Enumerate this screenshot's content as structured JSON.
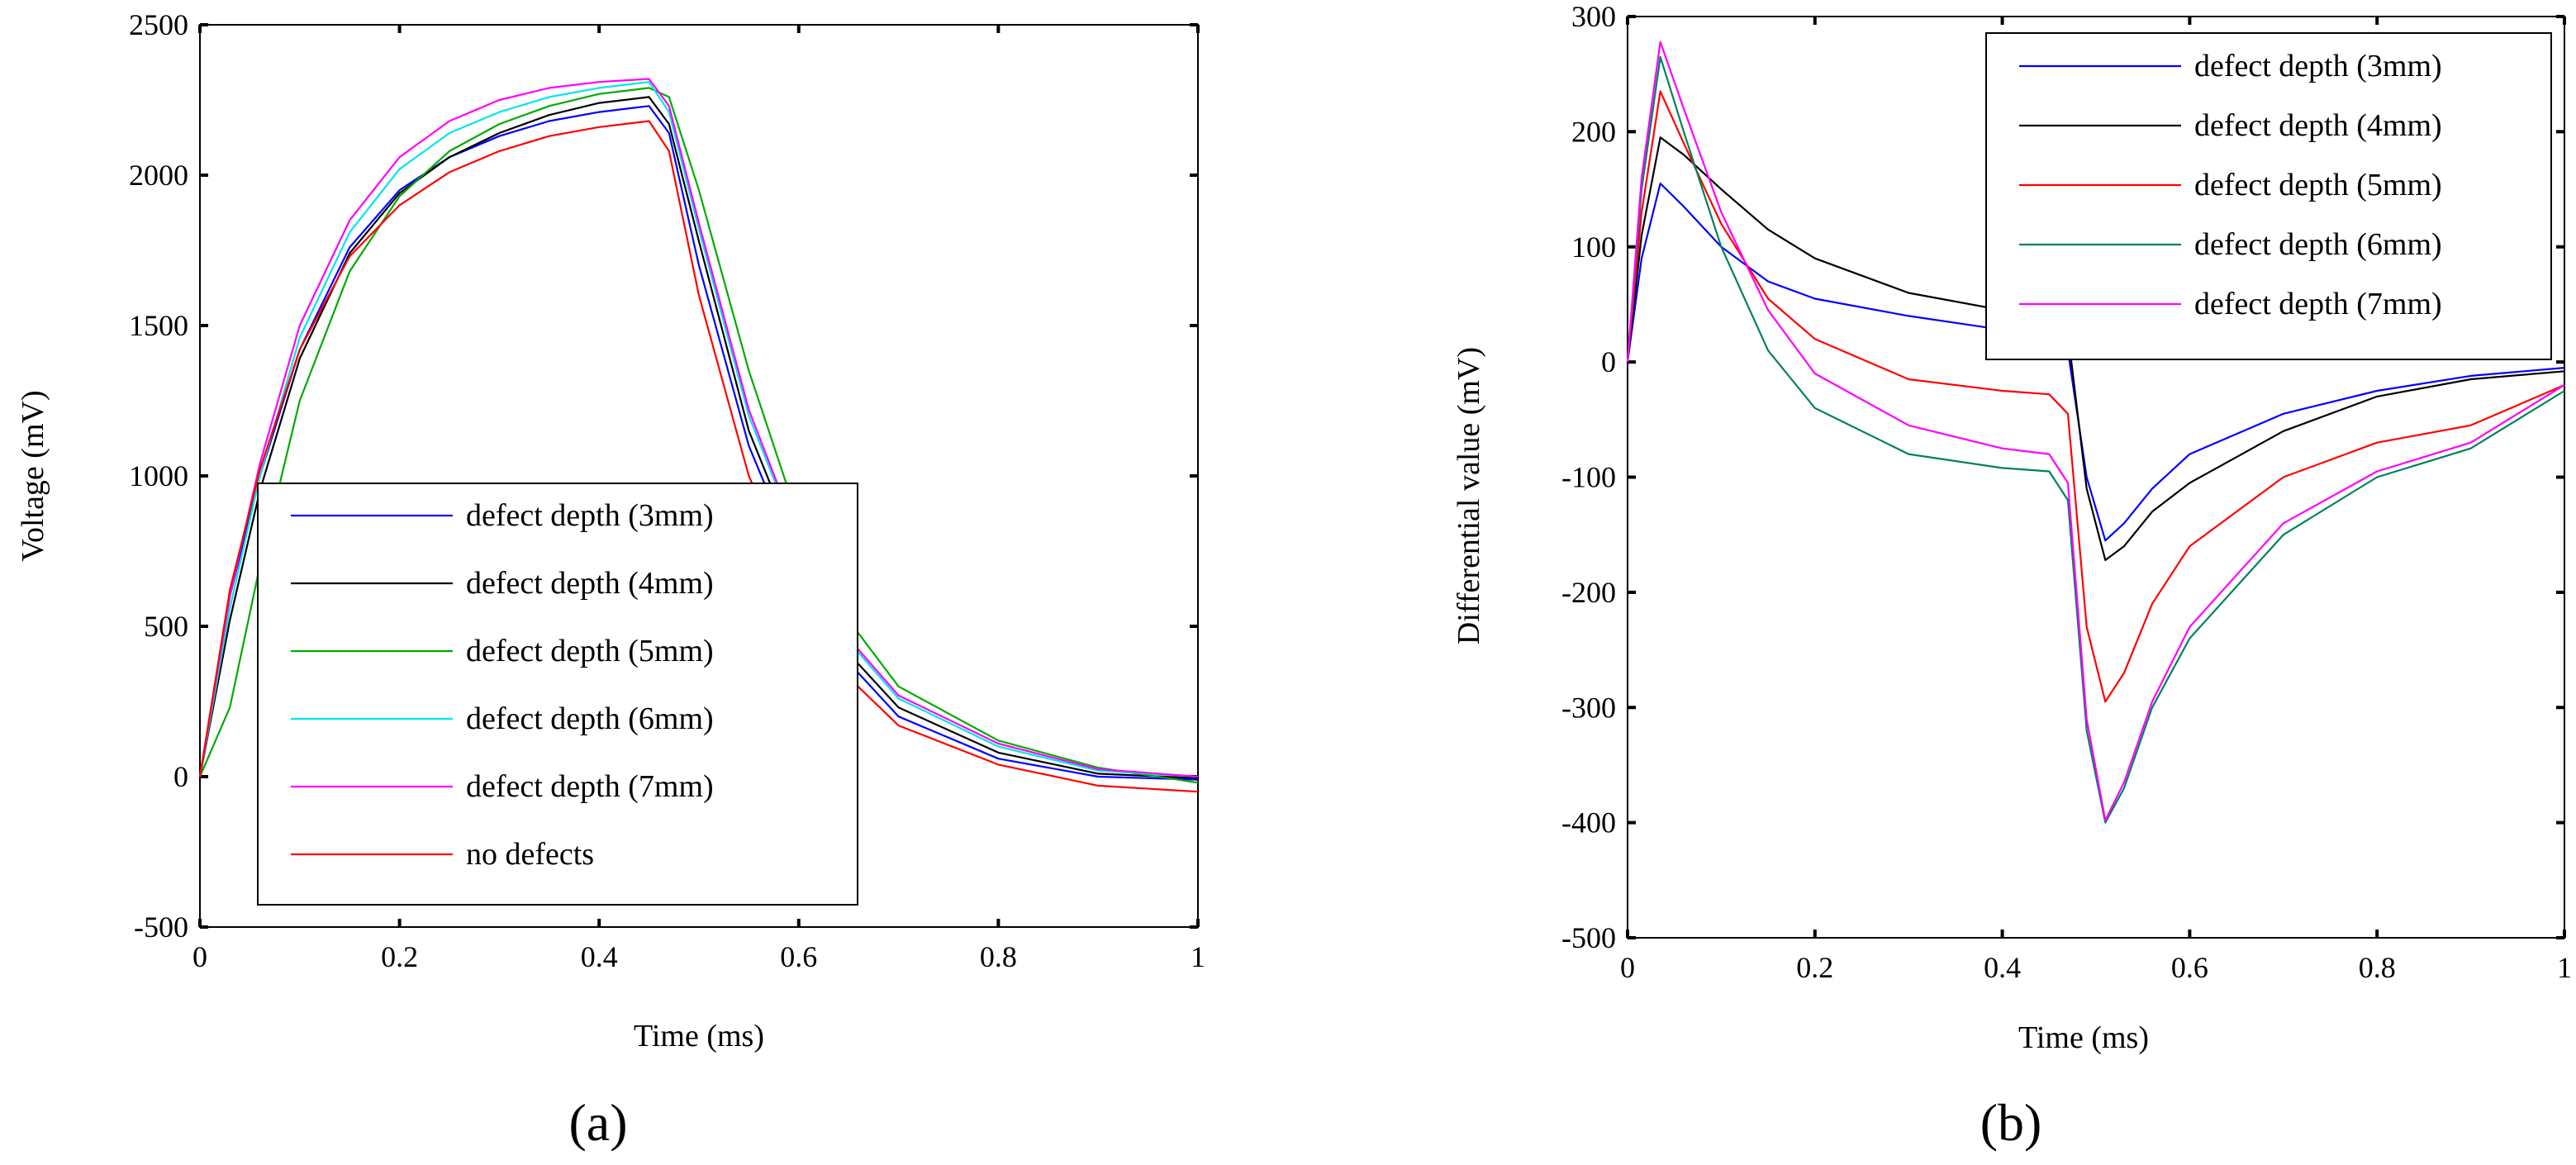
{
  "colors": {
    "3mm": "#0000ff",
    "4mm": "#000000",
    "5mm": "#00aa00",
    "6mm": "#00e6e6",
    "7mm": "#ff00ff",
    "none": "#ff0000",
    "b5mm": "#ff0000",
    "b6mm": "#008060"
  },
  "chart_data": [
    {
      "type": "line",
      "panel_label": "(a)",
      "title": "",
      "xlabel": "Time (ms)",
      "ylabel": "Voltage (mV)",
      "xlim": [
        0,
        1
      ],
      "ylim": [
        -500,
        2500
      ],
      "xticks": [
        "0",
        "0.2",
        "0.4",
        "0.6",
        "0.8",
        "1"
      ],
      "xtick_values": [
        0,
        0.2,
        0.4,
        0.6,
        0.8,
        1
      ],
      "yticks": [
        "-500",
        "0",
        "500",
        "1000",
        "1500",
        "2000",
        "2500"
      ],
      "ytick_values": [
        -500,
        0,
        500,
        1000,
        1500,
        2000,
        2500
      ],
      "legend_position": "bottom-center",
      "series": [
        {
          "name": "defect depth (3mm)",
          "color_key": "3mm",
          "x": [
            0,
            0.03,
            0.06,
            0.1,
            0.15,
            0.2,
            0.25,
            0.3,
            0.35,
            0.4,
            0.45,
            0.47,
            0.5,
            0.55,
            0.6,
            0.65,
            0.7,
            0.8,
            0.9,
            1
          ],
          "y": [
            0,
            600,
            1000,
            1420,
            1760,
            1950,
            2060,
            2130,
            2180,
            2210,
            2230,
            2140,
            1700,
            1100,
            700,
            380,
            200,
            60,
            0,
            -10
          ]
        },
        {
          "name": "defect depth (4mm)",
          "color_key": "4mm",
          "x": [
            0,
            0.03,
            0.06,
            0.1,
            0.15,
            0.2,
            0.25,
            0.3,
            0.35,
            0.4,
            0.45,
            0.47,
            0.5,
            0.55,
            0.6,
            0.65,
            0.7,
            0.8,
            0.9,
            1
          ],
          "y": [
            0,
            520,
            950,
            1390,
            1740,
            1940,
            2060,
            2140,
            2200,
            2240,
            2260,
            2170,
            1780,
            1150,
            740,
            410,
            230,
            80,
            10,
            -5
          ]
        },
        {
          "name": "defect depth (5mm)",
          "color_key": "5mm",
          "x": [
            0,
            0.03,
            0.06,
            0.1,
            0.15,
            0.2,
            0.25,
            0.3,
            0.35,
            0.4,
            0.45,
            0.47,
            0.5,
            0.55,
            0.6,
            0.65,
            0.7,
            0.8,
            0.9,
            1
          ],
          "y": [
            0,
            230,
            700,
            1250,
            1680,
            1930,
            2080,
            2170,
            2230,
            2270,
            2290,
            2260,
            1950,
            1350,
            850,
            520,
            300,
            120,
            30,
            -20
          ]
        },
        {
          "name": "defect depth (6mm)",
          "color_key": "6mm",
          "x": [
            0,
            0.03,
            0.06,
            0.1,
            0.15,
            0.2,
            0.25,
            0.3,
            0.35,
            0.4,
            0.45,
            0.47,
            0.5,
            0.55,
            0.6,
            0.65,
            0.7,
            0.8,
            0.9,
            1
          ],
          "y": [
            0,
            560,
            1000,
            1460,
            1810,
            2020,
            2140,
            2210,
            2260,
            2290,
            2310,
            2210,
            1820,
            1200,
            780,
            450,
            260,
            100,
            20,
            0
          ]
        },
        {
          "name": "defect depth (7mm)",
          "color_key": "7mm",
          "x": [
            0,
            0.03,
            0.06,
            0.1,
            0.15,
            0.2,
            0.25,
            0.3,
            0.35,
            0.4,
            0.45,
            0.47,
            0.5,
            0.55,
            0.6,
            0.65,
            0.7,
            0.8,
            0.9,
            1
          ],
          "y": [
            0,
            600,
            1040,
            1500,
            1850,
            2060,
            2180,
            2250,
            2290,
            2310,
            2320,
            2230,
            1840,
            1220,
            790,
            460,
            270,
            110,
            25,
            0
          ]
        },
        {
          "name": "no defects",
          "color_key": "none",
          "x": [
            0,
            0.03,
            0.06,
            0.1,
            0.15,
            0.2,
            0.25,
            0.3,
            0.35,
            0.4,
            0.45,
            0.47,
            0.5,
            0.55,
            0.6,
            0.65,
            0.7,
            0.8,
            0.9,
            1
          ],
          "y": [
            0,
            620,
            1020,
            1420,
            1730,
            1900,
            2010,
            2080,
            2130,
            2160,
            2180,
            2080,
            1600,
            1000,
            620,
            330,
            170,
            40,
            -30,
            -50
          ]
        }
      ]
    },
    {
      "type": "line",
      "panel_label": "(b)",
      "title": "",
      "xlabel": "Time (ms)",
      "ylabel": "Differential value (mV)",
      "xlim": [
        0,
        1
      ],
      "ylim": [
        -500,
        300
      ],
      "xticks": [
        "0",
        "0.2",
        "0.4",
        "0.6",
        "0.8",
        "1"
      ],
      "xtick_values": [
        0,
        0.2,
        0.4,
        0.6,
        0.8,
        1
      ],
      "yticks": [
        "-500",
        "-400",
        "-300",
        "-200",
        "-100",
        "0",
        "100",
        "200",
        "300"
      ],
      "ytick_values": [
        -500,
        -400,
        -300,
        -200,
        -100,
        0,
        100,
        200,
        300
      ],
      "legend_position": "top-right",
      "series": [
        {
          "name": "defect depth (3mm)",
          "color_key": "3mm",
          "x": [
            0,
            0.015,
            0.035,
            0.06,
            0.1,
            0.15,
            0.2,
            0.3,
            0.4,
            0.45,
            0.47,
            0.49,
            0.51,
            0.53,
            0.56,
            0.6,
            0.7,
            0.8,
            0.9,
            1
          ],
          "y": [
            0,
            90,
            155,
            135,
            100,
            70,
            55,
            40,
            28,
            25,
            10,
            -100,
            -155,
            -140,
            -110,
            -80,
            -45,
            -25,
            -12,
            -5
          ]
        },
        {
          "name": "defect depth (4mm)",
          "color_key": "4mm",
          "x": [
            0,
            0.015,
            0.035,
            0.06,
            0.1,
            0.15,
            0.2,
            0.3,
            0.4,
            0.45,
            0.47,
            0.49,
            0.51,
            0.53,
            0.56,
            0.6,
            0.7,
            0.8,
            0.9,
            1
          ],
          "y": [
            0,
            110,
            195,
            180,
            150,
            115,
            90,
            60,
            45,
            40,
            25,
            -110,
            -172,
            -160,
            -130,
            -105,
            -60,
            -30,
            -15,
            -8
          ]
        },
        {
          "name": "defect depth (5mm)",
          "color_key": "b5mm",
          "x": [
            0,
            0.015,
            0.035,
            0.06,
            0.1,
            0.15,
            0.2,
            0.3,
            0.4,
            0.45,
            0.47,
            0.49,
            0.51,
            0.53,
            0.56,
            0.6,
            0.7,
            0.8,
            0.9,
            1
          ],
          "y": [
            0,
            130,
            235,
            190,
            120,
            55,
            20,
            -15,
            -25,
            -28,
            -45,
            -230,
            -295,
            -270,
            -210,
            -160,
            -100,
            -70,
            -55,
            -20
          ]
        },
        {
          "name": "defect depth (6mm)",
          "color_key": "b6mm",
          "x": [
            0,
            0.015,
            0.035,
            0.06,
            0.1,
            0.15,
            0.2,
            0.3,
            0.4,
            0.45,
            0.47,
            0.49,
            0.51,
            0.53,
            0.56,
            0.6,
            0.7,
            0.8,
            0.9,
            1
          ],
          "y": [
            0,
            150,
            265,
            200,
            100,
            10,
            -40,
            -80,
            -92,
            -95,
            -120,
            -320,
            -400,
            -370,
            -300,
            -240,
            -150,
            -100,
            -75,
            -25
          ]
        },
        {
          "name": "defect depth (7mm)",
          "color_key": "7mm",
          "x": [
            0,
            0.015,
            0.035,
            0.06,
            0.1,
            0.15,
            0.2,
            0.3,
            0.4,
            0.45,
            0.47,
            0.49,
            0.51,
            0.53,
            0.56,
            0.6,
            0.7,
            0.8,
            0.9,
            1
          ],
          "y": [
            0,
            160,
            278,
            220,
            130,
            45,
            -10,
            -55,
            -75,
            -80,
            -105,
            -310,
            -398,
            -365,
            -295,
            -230,
            -140,
            -95,
            -70,
            -20
          ]
        }
      ]
    }
  ]
}
